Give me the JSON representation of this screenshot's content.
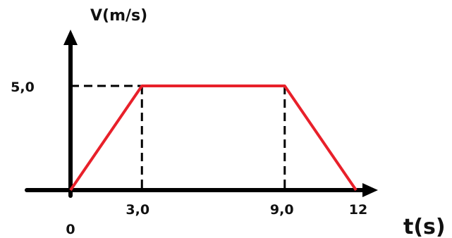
{
  "chart_data": {
    "type": "line",
    "ylabel": "V(m/s)",
    "xlabel": "t(s)",
    "x": [
      0,
      3,
      9,
      12
    ],
    "series": [
      {
        "values": [
          0,
          5,
          5,
          0
        ],
        "color": "#e8202a"
      }
    ],
    "xticks": [
      {
        "value": 0,
        "label": "0"
      },
      {
        "value": 3,
        "label": "3,0"
      },
      {
        "value": 9,
        "label": "9,0"
      },
      {
        "value": 12,
        "label": "12"
      }
    ],
    "yticks": [
      {
        "value": 5,
        "label": "5,0"
      }
    ],
    "guides": [
      {
        "x": 3,
        "y": 5
      },
      {
        "x": 9,
        "y": 5
      }
    ],
    "xlim": [
      0,
      12
    ],
    "ylim": [
      0,
      5
    ],
    "grid": false,
    "legend": "none",
    "axis_color": "#000000"
  }
}
